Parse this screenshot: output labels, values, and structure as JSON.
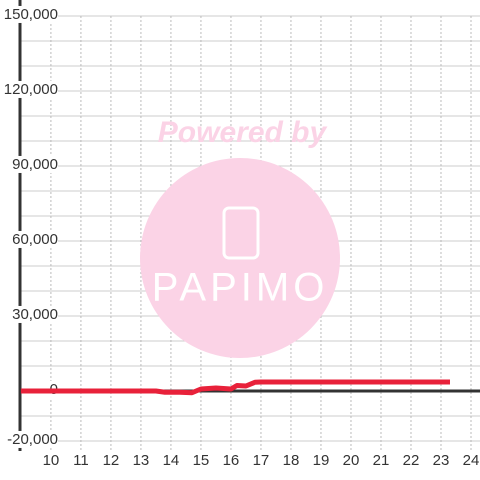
{
  "chart_data": {
    "type": "line",
    "watermark": [
      "Powered by",
      "PAPIMO"
    ],
    "x": [
      9,
      13.5,
      13.8,
      14.3,
      14.7,
      15,
      15.5,
      16,
      16.2,
      16.5,
      16.8,
      17,
      23.3
    ],
    "series": [
      {
        "color": "#e8213a",
        "values": [
          0,
          0,
          -500,
          -500,
          -700,
          800,
          1200,
          800,
          2200,
          2000,
          3500,
          3600,
          3600
        ]
      }
    ],
    "xlim": [
      8.97,
      24.3
    ],
    "ylim": [
      -20000,
      150000
    ],
    "xticks": [
      10,
      11,
      12,
      13,
      14,
      15,
      16,
      17,
      18,
      19,
      20,
      21,
      22,
      23,
      24
    ],
    "yticks": [
      {
        "value": -20000,
        "label": "-20,000"
      },
      0,
      {
        "value": 30000,
        "label": "30,000"
      },
      {
        "value": 60000,
        "label": "60,000"
      },
      {
        "value": 90000,
        "label": "90,000"
      },
      {
        "value": 120000,
        "label": "120,000"
      },
      {
        "value": 150000,
        "label": "150,000"
      }
    ],
    "grid": true
  }
}
